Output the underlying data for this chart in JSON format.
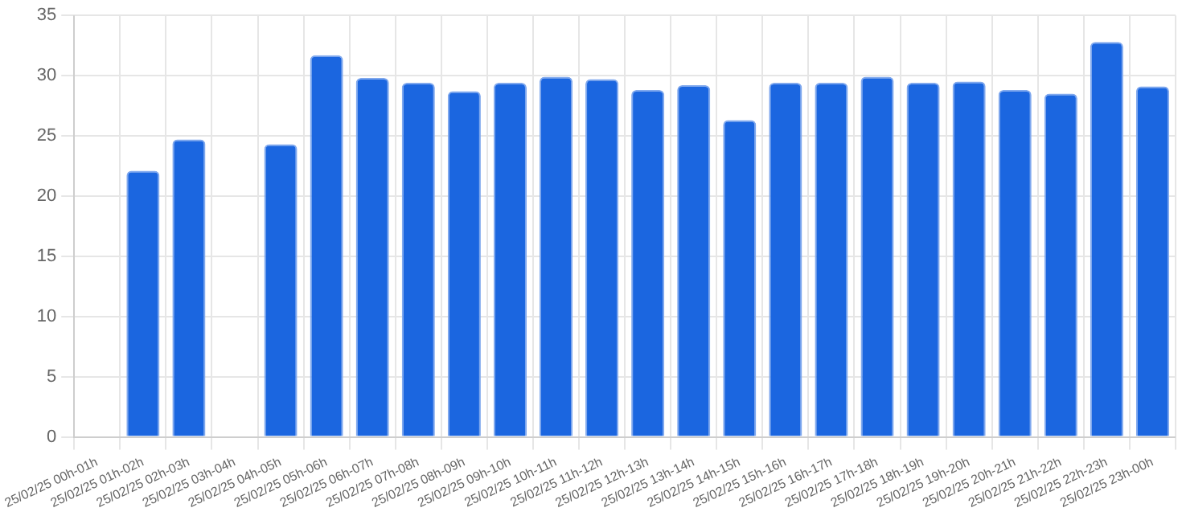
{
  "chart_data": {
    "type": "bar",
    "categories": [
      "25/02/25 00h-01h",
      "25/02/25 01h-02h",
      "25/02/25 02h-03h",
      "25/02/25 03h-04h",
      "25/02/25 04h-05h",
      "25/02/25 05h-06h",
      "25/02/25 06h-07h",
      "25/02/25 07h-08h",
      "25/02/25 08h-09h",
      "25/02/25 09h-10h",
      "25/02/25 10h-11h",
      "25/02/25 11h-12h",
      "25/02/25 12h-13h",
      "25/02/25 13h-14h",
      "25/02/25 14h-15h",
      "25/02/25 15h-16h",
      "25/02/25 16h-17h",
      "25/02/25 17h-18h",
      "25/02/25 18h-19h",
      "25/02/25 19h-20h",
      "25/02/25 20h-21h",
      "25/02/25 21h-22h",
      "25/02/25 22h-23h",
      "25/02/25 23h-00h"
    ],
    "values": [
      null,
      22.1,
      24.7,
      null,
      24.3,
      31.7,
      29.8,
      29.4,
      28.7,
      29.4,
      29.9,
      29.7,
      28.8,
      29.2,
      26.3,
      29.4,
      29.4,
      29.9,
      29.4,
      29.5,
      28.8,
      28.5,
      32.8,
      29.1
    ],
    "color": "#1b66e0",
    "ylim": [
      0,
      35
    ],
    "yticks": [
      0,
      5,
      10,
      15,
      20,
      25,
      30,
      35
    ],
    "grid": true,
    "legend": false
  }
}
